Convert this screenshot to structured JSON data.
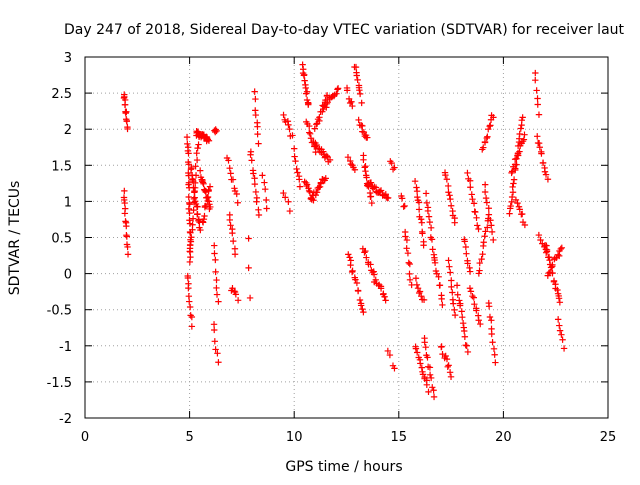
{
  "chart_data": {
    "type": "scatter",
    "title": "Day 247 of 2018, Sidereal Day-to-day VTEC variation (SDTVAR) for receiver laut",
    "xlabel": "GPS time / hours",
    "ylabel": "SDTVAR / TECUs",
    "xlim": [
      0,
      25
    ],
    "ylim": [
      -2,
      3
    ],
    "xticks": [
      "0",
      "5",
      "10",
      "15",
      "20",
      "25"
    ],
    "yticks": [
      "-2",
      "-1.5",
      "-1",
      "-0.5",
      "0",
      "0.5",
      "1",
      "1.5",
      "2",
      "2.5",
      "3"
    ],
    "grid": true,
    "marker": "+",
    "color": "#ff0000",
    "segments": [
      {
        "x0": 1.85,
        "x1": 2.05,
        "y0": 2.5,
        "y1": 2.0,
        "n": 14
      },
      {
        "x0": 1.85,
        "x1": 2.05,
        "y0": 1.15,
        "y1": 0.3,
        "n": 14
      },
      {
        "x0": 4.9,
        "x1": 5.1,
        "y0": 0.0,
        "y1": -0.7,
        "n": 10
      },
      {
        "x0": 4.9,
        "x1": 5.05,
        "y0": 1.9,
        "y1": 0.2,
        "n": 26
      },
      {
        "x0": 5.0,
        "x1": 5.4,
        "y0": 0.2,
        "y1": 1.8,
        "n": 20
      },
      {
        "x0": 5.05,
        "x1": 5.5,
        "y0": 1.5,
        "y1": 0.6,
        "n": 22
      },
      {
        "x0": 5.3,
        "x1": 5.9,
        "y0": 1.95,
        "y1": 1.85,
        "n": 26
      },
      {
        "x0": 5.5,
        "x1": 6.0,
        "y0": 1.4,
        "y1": 0.9,
        "n": 18
      },
      {
        "x0": 5.6,
        "x1": 5.95,
        "y0": 0.7,
        "y1": 1.2,
        "n": 12
      },
      {
        "x0": 6.15,
        "x1": 6.35,
        "y0": -0.7,
        "y1": -1.25,
        "n": 6
      },
      {
        "x0": 6.15,
        "x1": 6.35,
        "y0": 0.4,
        "y1": -0.4,
        "n": 8
      },
      {
        "x0": 6.2,
        "x1": 6.3,
        "y0": 2.0,
        "y1": 1.95,
        "n": 4
      },
      {
        "x0": 6.8,
        "x1": 7.3,
        "y0": 1.6,
        "y1": 1.0,
        "n": 10
      },
      {
        "x0": 6.9,
        "x1": 7.2,
        "y0": 0.85,
        "y1": 0.3,
        "n": 8
      },
      {
        "x0": 7.0,
        "x1": 7.3,
        "y0": -0.2,
        "y1": -0.35,
        "n": 6
      },
      {
        "x0": 7.8,
        "x1": 7.9,
        "y0": 0.5,
        "y1": -0.3,
        "n": 3
      },
      {
        "x0": 7.9,
        "x1": 8.3,
        "y0": 1.7,
        "y1": 0.8,
        "n": 12
      },
      {
        "x0": 8.1,
        "x1": 8.3,
        "y0": 2.5,
        "y1": 1.8,
        "n": 8
      },
      {
        "x0": 8.5,
        "x1": 8.7,
        "y0": 1.4,
        "y1": 0.9,
        "n": 5
      },
      {
        "x0": 9.5,
        "x1": 9.9,
        "y0": 2.2,
        "y1": 1.9,
        "n": 8
      },
      {
        "x0": 9.5,
        "x1": 9.8,
        "y0": 1.1,
        "y1": 0.9,
        "n": 4
      },
      {
        "x0": 10.0,
        "x1": 10.3,
        "y0": 1.7,
        "y1": 1.2,
        "n": 8
      },
      {
        "x0": 10.4,
        "x1": 10.7,
        "y0": 2.9,
        "y1": 2.3,
        "n": 14
      },
      {
        "x0": 10.5,
        "x1": 10.9,
        "y0": 1.3,
        "y1": 1.0,
        "n": 10
      },
      {
        "x0": 10.6,
        "x1": 11.0,
        "y0": 2.1,
        "y1": 1.7,
        "n": 10
      },
      {
        "x0": 10.8,
        "x1": 11.5,
        "y0": 1.0,
        "y1": 1.35,
        "n": 18
      },
      {
        "x0": 11.0,
        "x1": 11.7,
        "y0": 1.8,
        "y1": 1.55,
        "n": 16
      },
      {
        "x0": 11.0,
        "x1": 11.6,
        "y0": 2.0,
        "y1": 2.5,
        "n": 14
      },
      {
        "x0": 11.4,
        "x1": 12.1,
        "y0": 2.3,
        "y1": 2.55,
        "n": 14
      },
      {
        "x0": 12.5,
        "x1": 12.8,
        "y0": 2.55,
        "y1": 2.3,
        "n": 6
      },
      {
        "x0": 12.6,
        "x1": 12.9,
        "y0": 1.6,
        "y1": 1.4,
        "n": 6
      },
      {
        "x0": 12.6,
        "x1": 12.8,
        "y0": 0.3,
        "y1": 0.0,
        "n": 6
      },
      {
        "x0": 12.9,
        "x1": 13.3,
        "y0": -0.05,
        "y1": -0.55,
        "n": 10
      },
      {
        "x0": 12.9,
        "x1": 13.2,
        "y0": 2.9,
        "y1": 2.4,
        "n": 10
      },
      {
        "x0": 13.1,
        "x1": 13.5,
        "y0": 2.1,
        "y1": 1.85,
        "n": 10
      },
      {
        "x0": 13.3,
        "x1": 13.8,
        "y0": 0.35,
        "y1": 0.0,
        "n": 10
      },
      {
        "x0": 13.3,
        "x1": 13.7,
        "y0": 1.6,
        "y1": 1.0,
        "n": 14
      },
      {
        "x0": 13.5,
        "x1": 14.5,
        "y0": 1.25,
        "y1": 1.05,
        "n": 22
      },
      {
        "x0": 13.8,
        "x1": 14.4,
        "y0": -0.05,
        "y1": -0.35,
        "n": 12
      },
      {
        "x0": 14.6,
        "x1": 14.8,
        "y0": 1.55,
        "y1": 1.45,
        "n": 4
      },
      {
        "x0": 14.5,
        "x1": 14.8,
        "y0": -1.05,
        "y1": -1.35,
        "n": 4
      },
      {
        "x0": 15.1,
        "x1": 15.3,
        "y0": 1.1,
        "y1": 0.9,
        "n": 4
      },
      {
        "x0": 15.3,
        "x1": 15.6,
        "y0": 0.6,
        "y1": -0.15,
        "n": 10
      },
      {
        "x0": 15.8,
        "x1": 16.2,
        "y0": 1.3,
        "y1": 0.4,
        "n": 14
      },
      {
        "x0": 15.8,
        "x1": 16.2,
        "y0": -0.1,
        "y1": -0.4,
        "n": 8
      },
      {
        "x0": 15.8,
        "x1": 16.4,
        "y0": -1.0,
        "y1": -1.6,
        "n": 14
      },
      {
        "x0": 16.2,
        "x1": 16.7,
        "y0": -0.9,
        "y1": -1.7,
        "n": 12
      },
      {
        "x0": 16.3,
        "x1": 16.7,
        "y0": 1.1,
        "y1": 0.2,
        "n": 12
      },
      {
        "x0": 16.7,
        "x1": 17.1,
        "y0": 0.2,
        "y1": -0.4,
        "n": 10
      },
      {
        "x0": 17.0,
        "x1": 17.5,
        "y0": -1.0,
        "y1": -1.4,
        "n": 10
      },
      {
        "x0": 17.2,
        "x1": 17.7,
        "y0": 1.4,
        "y1": 0.7,
        "n": 12
      },
      {
        "x0": 17.4,
        "x1": 17.7,
        "y0": 0.2,
        "y1": -0.6,
        "n": 10
      },
      {
        "x0": 17.8,
        "x1": 18.3,
        "y0": -0.2,
        "y1": -1.1,
        "n": 14
      },
      {
        "x0": 18.1,
        "x1": 18.4,
        "y0": 0.5,
        "y1": 0.0,
        "n": 8
      },
      {
        "x0": 18.3,
        "x1": 18.8,
        "y0": 1.4,
        "y1": 0.6,
        "n": 12
      },
      {
        "x0": 18.4,
        "x1": 18.9,
        "y0": -0.2,
        "y1": -0.7,
        "n": 10
      },
      {
        "x0": 18.8,
        "x1": 19.3,
        "y0": 0.0,
        "y1": 0.8,
        "n": 12
      },
      {
        "x0": 19.0,
        "x1": 19.5,
        "y0": 1.7,
        "y1": 2.2,
        "n": 12
      },
      {
        "x0": 19.1,
        "x1": 19.5,
        "y0": 1.2,
        "y1": 0.5,
        "n": 10
      },
      {
        "x0": 19.3,
        "x1": 19.6,
        "y0": -0.4,
        "y1": -1.2,
        "n": 10
      },
      {
        "x0": 20.3,
        "x1": 20.9,
        "y0": 0.8,
        "y1": 2.2,
        "n": 22
      },
      {
        "x0": 20.4,
        "x1": 21.0,
        "y0": 1.4,
        "y1": 1.9,
        "n": 14
      },
      {
        "x0": 20.6,
        "x1": 21.0,
        "y0": 1.0,
        "y1": 0.7,
        "n": 8
      },
      {
        "x0": 21.5,
        "x1": 21.7,
        "y0": 2.75,
        "y1": 2.2,
        "n": 6
      },
      {
        "x0": 21.6,
        "x1": 22.1,
        "y0": 1.9,
        "y1": 1.3,
        "n": 12
      },
      {
        "x0": 21.7,
        "x1": 22.1,
        "y0": 0.5,
        "y1": 0.3,
        "n": 6
      },
      {
        "x0": 22.0,
        "x1": 22.7,
        "y0": 0.4,
        "y1": -0.4,
        "n": 20
      },
      {
        "x0": 22.1,
        "x1": 22.8,
        "y0": 0.0,
        "y1": 0.35,
        "n": 14
      },
      {
        "x0": 22.6,
        "x1": 22.9,
        "y0": -0.6,
        "y1": -1.0,
        "n": 6
      }
    ]
  }
}
